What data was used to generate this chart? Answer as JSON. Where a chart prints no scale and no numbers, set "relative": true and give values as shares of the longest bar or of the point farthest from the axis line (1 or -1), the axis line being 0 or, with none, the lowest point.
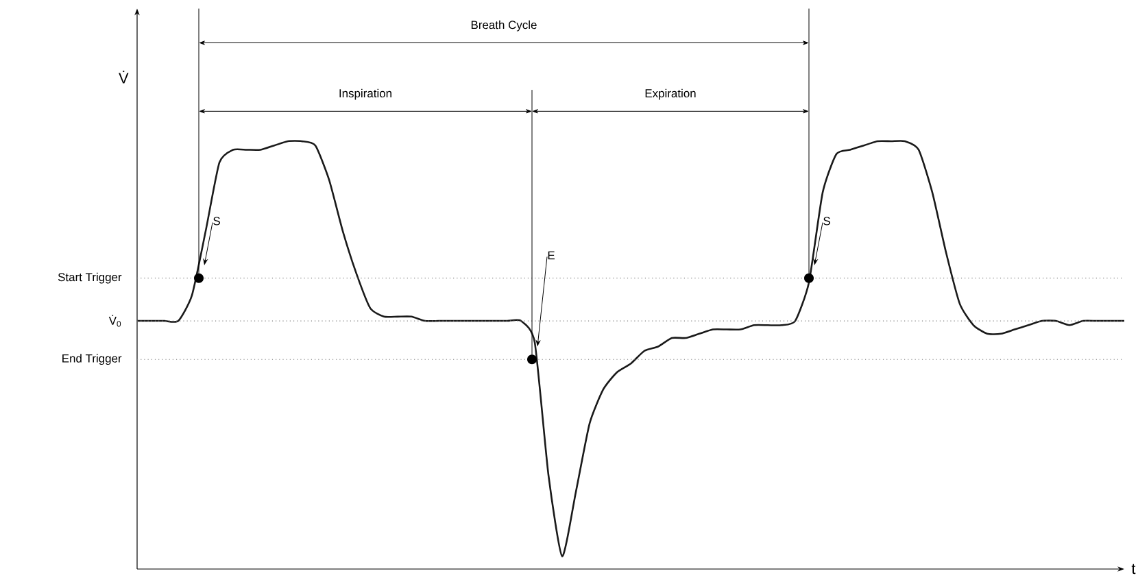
{
  "chart_data": {
    "type": "line",
    "relative": true,
    "xlabel": "t",
    "ylabel": "V̇",
    "line_style": "solid",
    "categories": [
      null,
      null,
      null,
      null,
      null,
      null,
      null,
      null,
      null,
      null,
      null,
      null,
      null,
      null,
      null,
      null,
      null,
      null,
      null,
      null,
      null,
      null,
      null,
      null,
      null,
      null,
      null,
      null,
      null,
      null,
      null,
      null,
      null,
      null,
      null,
      null,
      null,
      null,
      null,
      null,
      null,
      null,
      null,
      null,
      null,
      null,
      null,
      null,
      null,
      null,
      null,
      null,
      null,
      null,
      null,
      null,
      null,
      null,
      null,
      null,
      null,
      null,
      null,
      null,
      null,
      null,
      null,
      null,
      null,
      null,
      null,
      null,
      null
    ],
    "series": [
      {
        "color": "#1a1a1a",
        "values": [
          0.58,
          0.58,
          0.58,
          0.58,
          0.64,
          0.79,
          0.95,
          0.98,
          0.98,
          0.98,
          0.99,
          1.0,
          1.0,
          0.99,
          0.91,
          0.79,
          0.69,
          0.61,
          0.59,
          0.59,
          0.59,
          0.58,
          0.58,
          0.58,
          0.58,
          0.58,
          0.58,
          0.58,
          0.58,
          0.53,
          0.22,
          0.03,
          0.18,
          0.34,
          0.42,
          0.46,
          0.48,
          0.51,
          0.52,
          0.54,
          0.54,
          0.55,
          0.56,
          0.56,
          0.56,
          0.57,
          0.57,
          0.57,
          0.58,
          0.67,
          0.88,
          0.97,
          0.98,
          0.99,
          1.0,
          1.0,
          1.0,
          0.98,
          0.88,
          0.74,
          0.62,
          0.57,
          0.55,
          0.55,
          0.56,
          0.57,
          0.58,
          0.58,
          0.57,
          0.58,
          0.58,
          0.58,
          0.58
        ]
      }
    ],
    "ref_lines": [
      {
        "axis": "y",
        "value": 0.68,
        "label": "Start Trigger",
        "color": "#808080",
        "line_style": "dotted"
      },
      {
        "axis": "y",
        "value": 0.58,
        "label": "V̇$_{0}$",
        "color": "#808080",
        "line_style": "dotted"
      },
      {
        "axis": "y",
        "value": 0.49,
        "label": "End Trigger",
        "color": "#808080",
        "line_style": "dotted"
      }
    ],
    "annotations": [
      "Breath Cycle",
      "Inspiration",
      "Expiration",
      "S",
      "E",
      "S"
    ]
  }
}
